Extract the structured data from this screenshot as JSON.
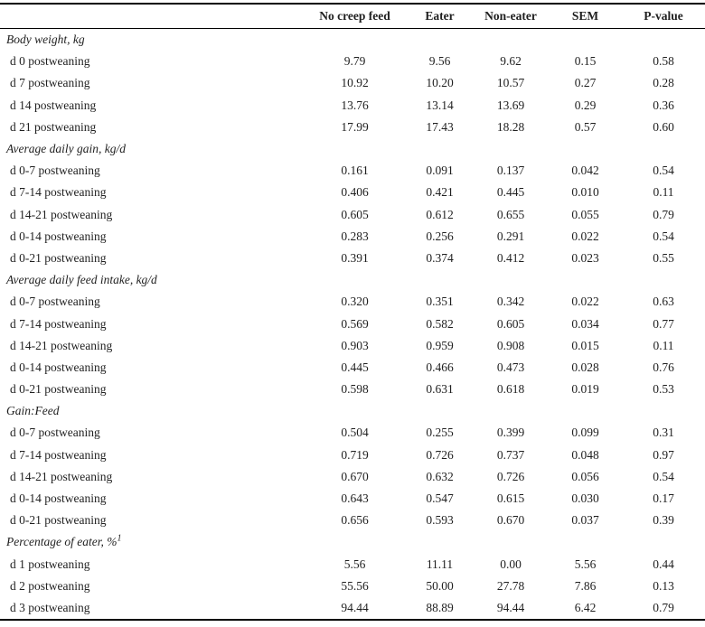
{
  "colors": {
    "background": "#ffffff",
    "text": "#1f1f1f",
    "rule": "#000000"
  },
  "table": {
    "columns": [
      "",
      "No creep feed",
      "Eater",
      "Non-eater",
      "SEM",
      "P-value"
    ],
    "sections": [
      {
        "header": "Body weight, kg",
        "header_sup": "",
        "rows": [
          {
            "label": "d 0 postweaning",
            "values": [
              "9.79",
              "9.56",
              "9.62",
              "0.15",
              "0.58"
            ]
          },
          {
            "label": "d 7 postweaning",
            "values": [
              "10.92",
              "10.20",
              "10.57",
              "0.27",
              "0.28"
            ]
          },
          {
            "label": "d 14 postweaning",
            "values": [
              "13.76",
              "13.14",
              "13.69",
              "0.29",
              "0.36"
            ]
          },
          {
            "label": "d 21 postweaning",
            "values": [
              "17.99",
              "17.43",
              "18.28",
              "0.57",
              "0.60"
            ]
          }
        ]
      },
      {
        "header": "Average daily gain, kg/d",
        "header_sup": "",
        "rows": [
          {
            "label": "d 0-7 postweaning",
            "values": [
              "0.161",
              "0.091",
              "0.137",
              "0.042",
              "0.54"
            ]
          },
          {
            "label": "d 7-14 postweaning",
            "values": [
              "0.406",
              "0.421",
              "0.445",
              "0.010",
              "0.11"
            ]
          },
          {
            "label": "d 14-21 postweaning",
            "values": [
              "0.605",
              "0.612",
              "0.655",
              "0.055",
              "0.79"
            ]
          },
          {
            "label": "d 0-14 postweaning",
            "values": [
              "0.283",
              "0.256",
              "0.291",
              "0.022",
              "0.54"
            ]
          },
          {
            "label": "d 0-21 postweaning",
            "values": [
              "0.391",
              "0.374",
              "0.412",
              "0.023",
              "0.55"
            ]
          }
        ]
      },
      {
        "header": "Average daily feed intake, kg/d",
        "header_sup": "",
        "rows": [
          {
            "label": "d 0-7 postweaning",
            "values": [
              "0.320",
              "0.351",
              "0.342",
              "0.022",
              "0.63"
            ]
          },
          {
            "label": "d 7-14 postweaning",
            "values": [
              "0.569",
              "0.582",
              "0.605",
              "0.034",
              "0.77"
            ]
          },
          {
            "label": "d 14-21 postweaning",
            "values": [
              "0.903",
              "0.959",
              "0.908",
              "0.015",
              "0.11"
            ]
          },
          {
            "label": "d 0-14 postweaning",
            "values": [
              "0.445",
              "0.466",
              "0.473",
              "0.028",
              "0.76"
            ]
          },
          {
            "label": "d 0-21 postweaning",
            "values": [
              "0.598",
              "0.631",
              "0.618",
              "0.019",
              "0.53"
            ]
          }
        ]
      },
      {
        "header": "Gain:Feed",
        "header_sup": "",
        "rows": [
          {
            "label": "d 0-7 postweaning",
            "values": [
              "0.504",
              "0.255",
              "0.399",
              "0.099",
              "0.31"
            ]
          },
          {
            "label": "d 7-14 postweaning",
            "values": [
              "0.719",
              "0.726",
              "0.737",
              "0.048",
              "0.97"
            ]
          },
          {
            "label": "d 14-21 postweaning",
            "values": [
              "0.670",
              "0.632",
              "0.726",
              "0.056",
              "0.54"
            ]
          },
          {
            "label": "d 0-14 postweaning",
            "values": [
              "0.643",
              "0.547",
              "0.615",
              "0.030",
              "0.17"
            ]
          },
          {
            "label": "d 0-21 postweaning",
            "values": [
              "0.656",
              "0.593",
              "0.670",
              "0.037",
              "0.39"
            ]
          }
        ]
      },
      {
        "header": "Percentage of eater, %",
        "header_sup": "1",
        "rows": [
          {
            "label": "d 1 postweaning",
            "values": [
              "5.56",
              "11.11",
              "0.00",
              "5.56",
              "0.44"
            ]
          },
          {
            "label": "d 2 postweaning",
            "values": [
              "55.56",
              "50.00",
              "27.78",
              "7.86",
              "0.13"
            ]
          },
          {
            "label": "d 3 postweaning",
            "values": [
              "94.44",
              "88.89",
              "94.44",
              "6.42",
              "0.79"
            ]
          }
        ]
      }
    ]
  }
}
